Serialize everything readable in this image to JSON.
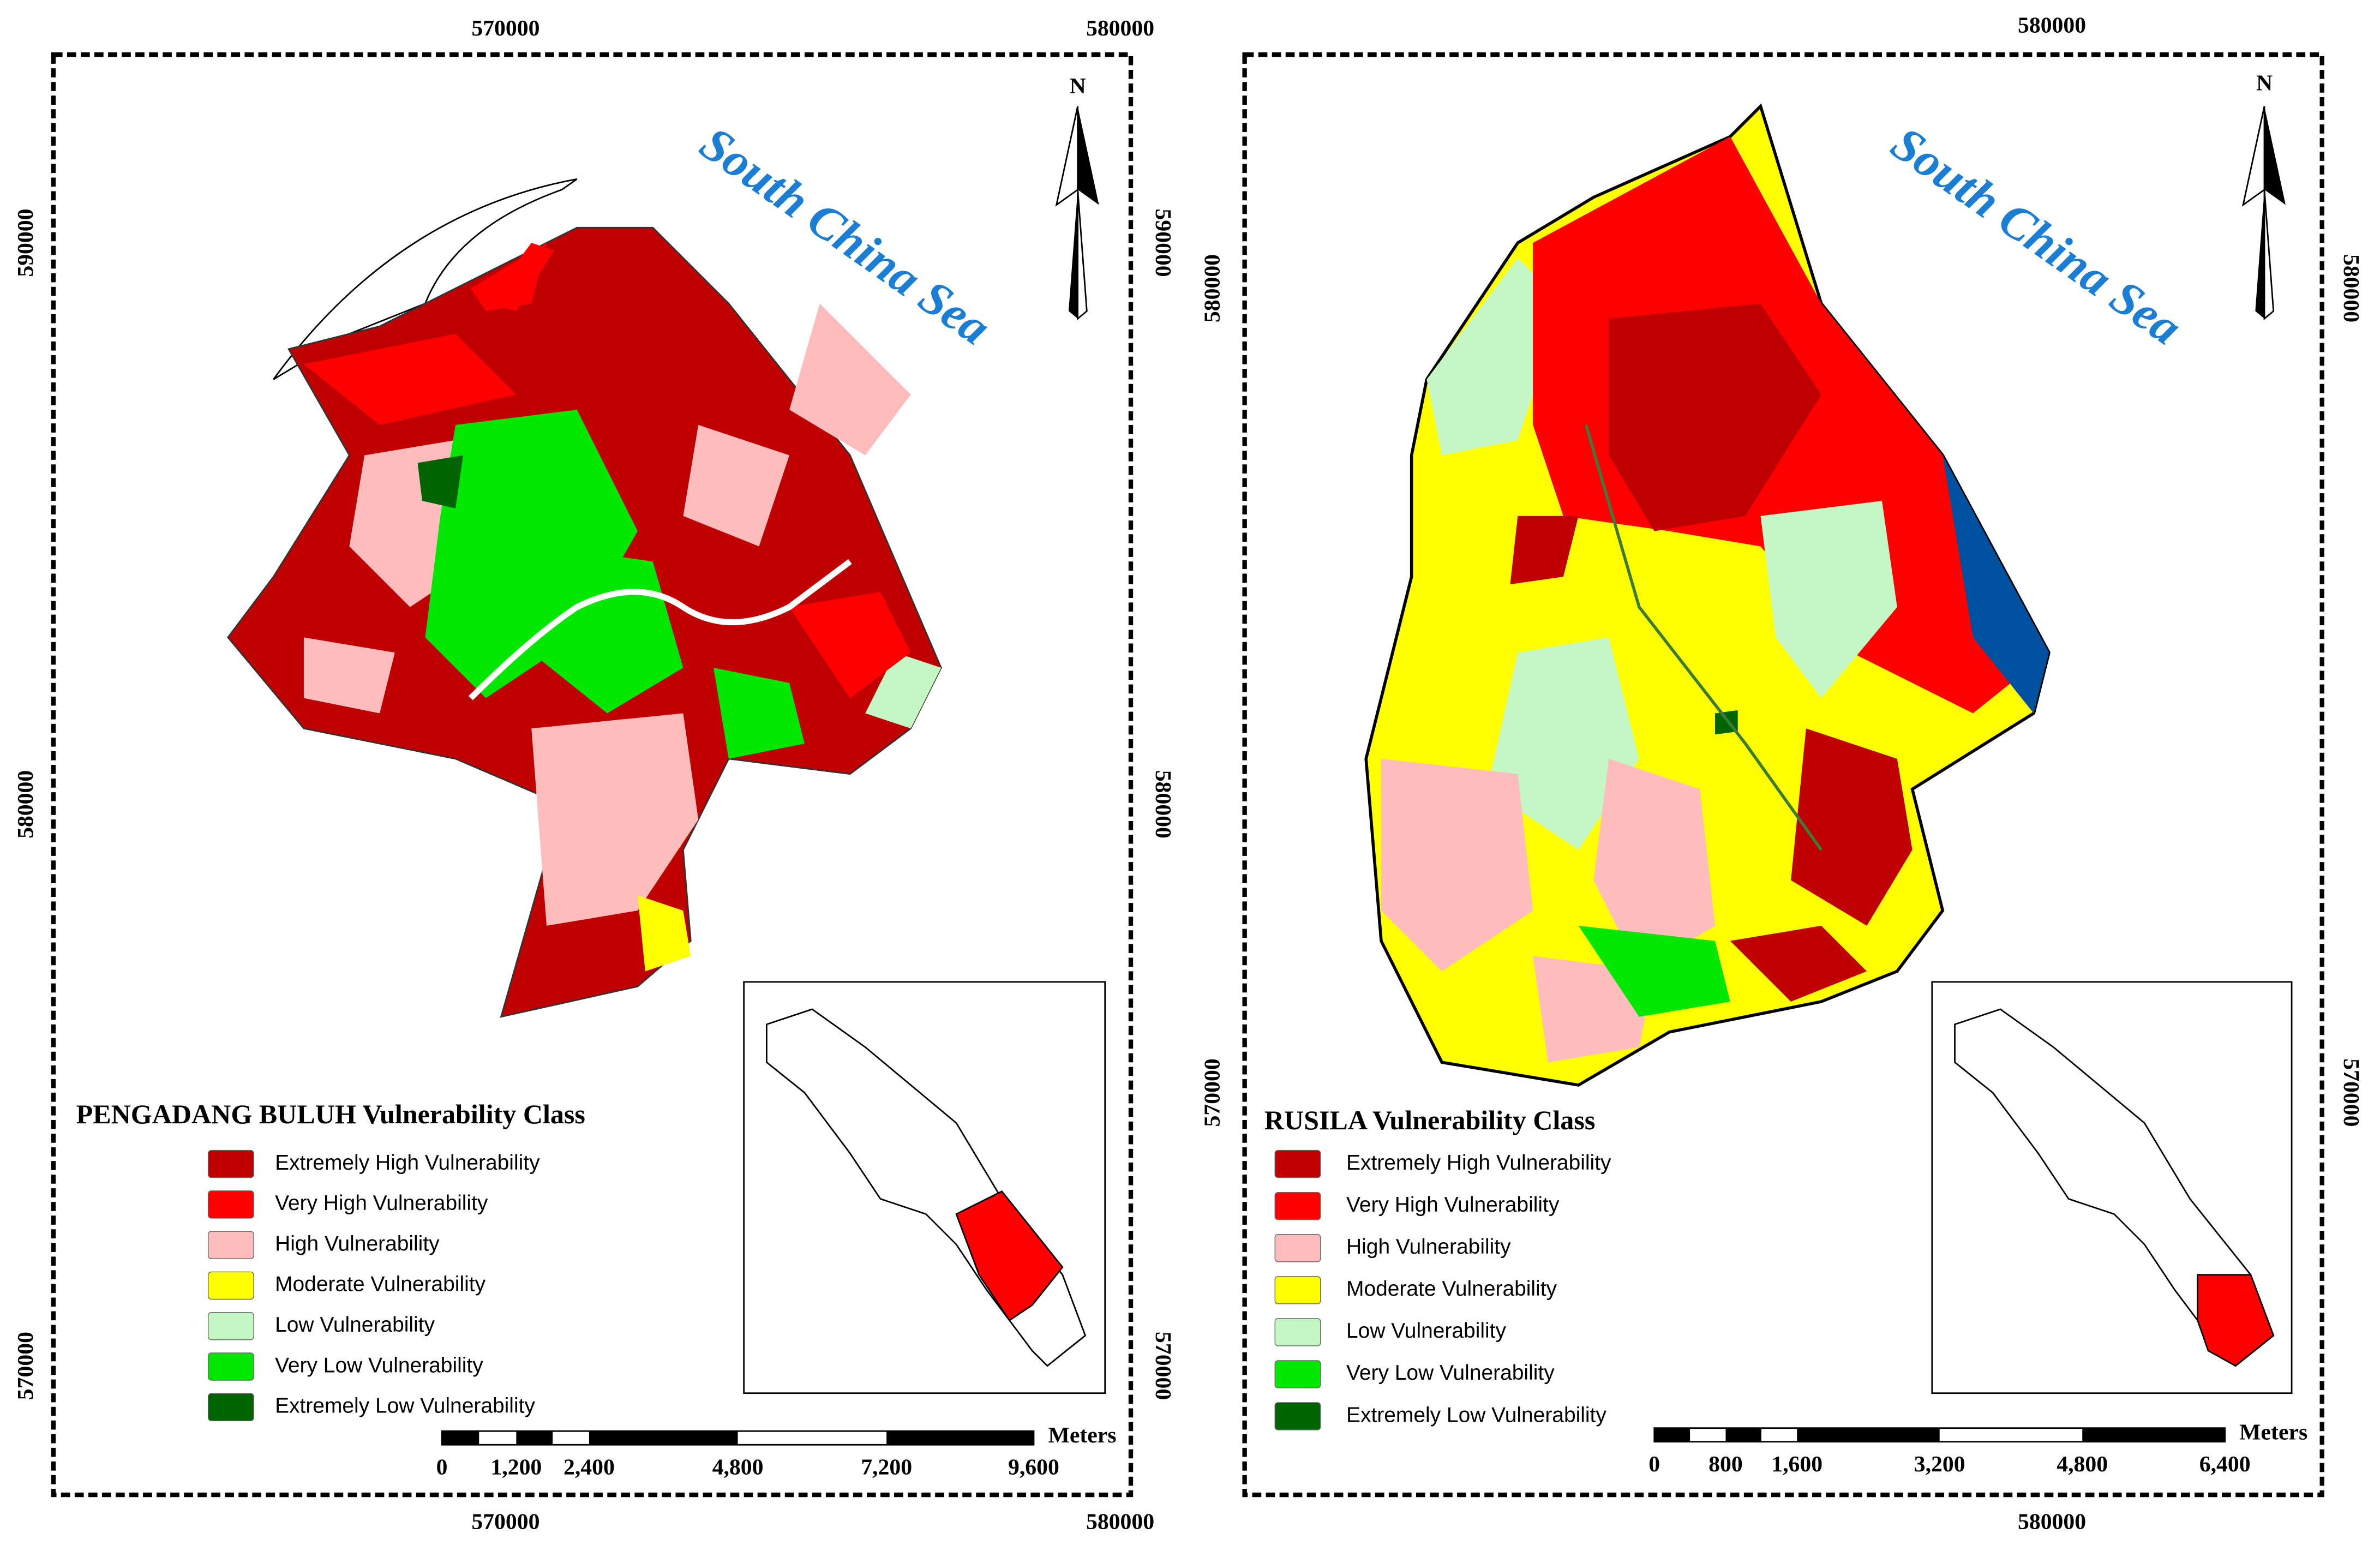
{
  "maps": [
    {
      "title": "PENGADANG BULUH Vulnerability Class",
      "sea_label": "South China Sea",
      "north": "N",
      "coords": {
        "top": [
          "570000",
          "580000"
        ],
        "bottom": [
          "570000",
          "580000"
        ],
        "left": [
          "590000",
          "580000",
          "570000"
        ],
        "right": [
          "590000",
          "580000",
          "570000"
        ]
      },
      "legend": [
        {
          "label": "Extremely High Vulnerability",
          "color": "#c00000"
        },
        {
          "label": "Very High Vulnerability",
          "color": "#ff0000"
        },
        {
          "label": "High Vulnerability",
          "color": "#ffbcbc"
        },
        {
          "label": "Moderate Vulnerability",
          "color": "#ffff00"
        },
        {
          "label": "Low Vulnerability",
          "color": "#c4f7c4"
        },
        {
          "label": "Very Low Vulnerability",
          "color": "#00e800"
        },
        {
          "label": "Extremely Low Vulnerability",
          "color": "#006400"
        }
      ],
      "scale": {
        "unit": "Meters",
        "labels": [
          "0",
          "1,200",
          "2,400",
          "4,800",
          "7,200",
          "9,600"
        ]
      }
    },
    {
      "title": "RUSILA Vulnerability Class",
      "sea_label": "South China Sea",
      "north": "N",
      "coords": {
        "top": [
          "580000"
        ],
        "bottom": [
          "580000"
        ],
        "left": [
          "580000",
          "570000"
        ],
        "right": [
          "580000",
          "570000"
        ]
      },
      "legend": [
        {
          "label": "Extremely High Vulnerability",
          "color": "#c00000"
        },
        {
          "label": "Very High Vulnerability",
          "color": "#ff0000"
        },
        {
          "label": "High Vulnerability",
          "color": "#ffbcbc"
        },
        {
          "label": "Moderate Vulnerability",
          "color": "#ffff00"
        },
        {
          "label": "Low Vulnerability",
          "color": "#c4f7c4"
        },
        {
          "label": "Very Low Vulnerability",
          "color": "#00e800"
        },
        {
          "label": "Extremely Low Vulnerability",
          "color": "#006400"
        }
      ],
      "scale": {
        "unit": "Meters",
        "labels": [
          "0",
          "800",
          "1,600",
          "3,200",
          "4,800",
          "6,400"
        ]
      }
    }
  ]
}
